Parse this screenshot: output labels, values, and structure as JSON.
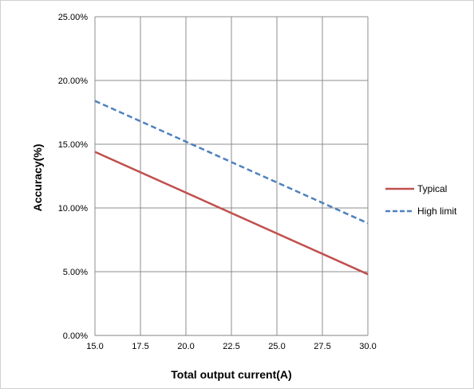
{
  "chart_data": {
    "type": "line",
    "title": "",
    "xlabel": "Total output current(A)",
    "ylabel": "Accuracy(%)",
    "xlim": [
      15.0,
      30.0
    ],
    "ylim": [
      0,
      0.25
    ],
    "x_ticks": [
      "15.0",
      "17.5",
      "20.0",
      "22.5",
      "25.0",
      "27.5",
      "30.0"
    ],
    "y_ticks": [
      "0.00%",
      "5.00%",
      "10.00%",
      "15.00%",
      "20.00%",
      "25.00%"
    ],
    "grid": true,
    "legend_position": "right",
    "series": [
      {
        "name": "Typical",
        "x": [
          15.0,
          30.0
        ],
        "y": [
          0.144,
          0.048
        ],
        "color": "#c0504d",
        "style": "solid"
      },
      {
        "name": "High limit",
        "x": [
          15.0,
          30.0
        ],
        "y": [
          0.184,
          0.088
        ],
        "color": "#4f81bd",
        "style": "dashed"
      }
    ]
  }
}
